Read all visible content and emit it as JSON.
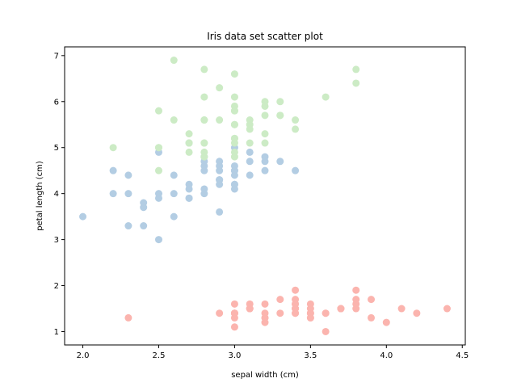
{
  "chart_data": {
    "type": "scatter",
    "title": "Iris data set scatter plot",
    "xlabel": "sepal width (cm)",
    "ylabel": "petal length (cm)",
    "xlim": [
      1.88,
      4.52
    ],
    "ylim": [
      0.71,
      7.19
    ],
    "xticks": [
      "2.0",
      "2.5",
      "3.0",
      "3.5",
      "4.0",
      "4.5"
    ],
    "yticks": [
      "1",
      "2",
      "3",
      "4",
      "5",
      "6",
      "7"
    ],
    "grid": false,
    "legend": "none",
    "series": [
      {
        "color": "#FBB4AE",
        "points": [
          [
            3.5,
            1.4
          ],
          [
            3.0,
            1.4
          ],
          [
            3.2,
            1.3
          ],
          [
            3.1,
            1.5
          ],
          [
            3.6,
            1.4
          ],
          [
            3.9,
            1.7
          ],
          [
            3.4,
            1.4
          ],
          [
            3.4,
            1.5
          ],
          [
            2.9,
            1.4
          ],
          [
            3.1,
            1.5
          ],
          [
            3.7,
            1.5
          ],
          [
            3.4,
            1.6
          ],
          [
            3.0,
            1.4
          ],
          [
            3.0,
            1.1
          ],
          [
            4.0,
            1.2
          ],
          [
            4.4,
            1.5
          ],
          [
            3.9,
            1.3
          ],
          [
            3.5,
            1.4
          ],
          [
            3.8,
            1.7
          ],
          [
            3.8,
            1.5
          ],
          [
            3.4,
            1.7
          ],
          [
            3.7,
            1.5
          ],
          [
            3.6,
            1.0
          ],
          [
            3.3,
            1.7
          ],
          [
            3.4,
            1.9
          ],
          [
            3.0,
            1.6
          ],
          [
            3.4,
            1.6
          ],
          [
            3.5,
            1.5
          ],
          [
            3.4,
            1.4
          ],
          [
            3.2,
            1.6
          ],
          [
            3.1,
            1.6
          ],
          [
            3.4,
            1.5
          ],
          [
            4.1,
            1.5
          ],
          [
            4.2,
            1.4
          ],
          [
            3.1,
            1.5
          ],
          [
            3.2,
            1.2
          ],
          [
            3.5,
            1.3
          ],
          [
            3.6,
            1.4
          ],
          [
            3.0,
            1.3
          ],
          [
            3.4,
            1.5
          ],
          [
            3.5,
            1.3
          ],
          [
            2.3,
            1.3
          ],
          [
            3.2,
            1.3
          ],
          [
            3.5,
            1.6
          ],
          [
            3.8,
            1.9
          ],
          [
            3.0,
            1.4
          ],
          [
            3.8,
            1.6
          ],
          [
            3.2,
            1.4
          ],
          [
            3.7,
            1.5
          ],
          [
            3.3,
            1.4
          ]
        ]
      },
      {
        "color": "#B3CDE3",
        "points": [
          [
            3.2,
            4.7
          ],
          [
            3.2,
            4.5
          ],
          [
            3.1,
            4.9
          ],
          [
            2.3,
            4.0
          ],
          [
            2.8,
            4.6
          ],
          [
            2.8,
            4.5
          ],
          [
            3.3,
            4.7
          ],
          [
            2.4,
            3.3
          ],
          [
            2.9,
            4.6
          ],
          [
            2.7,
            3.9
          ],
          [
            2.0,
            3.5
          ],
          [
            3.0,
            4.2
          ],
          [
            2.2,
            4.0
          ],
          [
            2.9,
            4.7
          ],
          [
            2.9,
            3.6
          ],
          [
            3.1,
            4.4
          ],
          [
            3.0,
            4.5
          ],
          [
            2.7,
            4.1
          ],
          [
            2.2,
            4.5
          ],
          [
            2.5,
            3.9
          ],
          [
            3.2,
            4.8
          ],
          [
            2.8,
            4.0
          ],
          [
            2.5,
            4.9
          ],
          [
            2.8,
            4.7
          ],
          [
            2.9,
            4.3
          ],
          [
            3.0,
            4.4
          ],
          [
            2.8,
            4.8
          ],
          [
            3.0,
            5.0
          ],
          [
            2.9,
            4.5
          ],
          [
            2.6,
            3.5
          ],
          [
            2.4,
            3.8
          ],
          [
            2.4,
            3.7
          ],
          [
            2.7,
            3.9
          ],
          [
            2.7,
            5.1
          ],
          [
            3.0,
            4.5
          ],
          [
            3.4,
            4.5
          ],
          [
            3.1,
            4.7
          ],
          [
            2.3,
            4.4
          ],
          [
            3.0,
            4.1
          ],
          [
            2.5,
            4.0
          ],
          [
            2.6,
            4.4
          ],
          [
            3.0,
            4.6
          ],
          [
            2.6,
            4.0
          ],
          [
            2.3,
            3.3
          ],
          [
            2.7,
            4.2
          ],
          [
            3.0,
            4.2
          ],
          [
            2.9,
            4.2
          ],
          [
            2.9,
            4.3
          ],
          [
            2.5,
            3.0
          ],
          [
            2.8,
            4.1
          ]
        ]
      },
      {
        "color": "#CCEBC5",
        "points": [
          [
            3.3,
            6.0
          ],
          [
            2.7,
            5.1
          ],
          [
            3.0,
            5.9
          ],
          [
            2.9,
            5.6
          ],
          [
            3.0,
            5.8
          ],
          [
            3.0,
            6.6
          ],
          [
            2.5,
            4.5
          ],
          [
            2.9,
            6.3
          ],
          [
            2.5,
            5.8
          ],
          [
            3.6,
            6.1
          ],
          [
            3.2,
            5.1
          ],
          [
            2.7,
            5.3
          ],
          [
            3.0,
            5.5
          ],
          [
            2.5,
            5.0
          ],
          [
            2.8,
            5.1
          ],
          [
            3.2,
            5.3
          ],
          [
            3.0,
            5.5
          ],
          [
            3.8,
            6.7
          ],
          [
            2.6,
            6.9
          ],
          [
            2.2,
            5.0
          ],
          [
            3.2,
            5.7
          ],
          [
            2.8,
            4.9
          ],
          [
            2.8,
            6.7
          ],
          [
            2.7,
            4.9
          ],
          [
            3.3,
            5.7
          ],
          [
            3.2,
            6.0
          ],
          [
            2.8,
            4.8
          ],
          [
            3.0,
            4.9
          ],
          [
            2.8,
            5.6
          ],
          [
            3.0,
            5.8
          ],
          [
            2.8,
            6.1
          ],
          [
            3.8,
            6.4
          ],
          [
            2.8,
            5.6
          ],
          [
            2.8,
            5.1
          ],
          [
            2.6,
            5.6
          ],
          [
            3.0,
            6.1
          ],
          [
            3.4,
            5.6
          ],
          [
            3.1,
            5.5
          ],
          [
            3.0,
            4.8
          ],
          [
            3.1,
            5.4
          ],
          [
            3.1,
            5.6
          ],
          [
            3.1,
            5.1
          ],
          [
            2.7,
            5.1
          ],
          [
            3.2,
            5.9
          ],
          [
            3.3,
            5.7
          ],
          [
            3.0,
            5.2
          ],
          [
            2.5,
            5.0
          ],
          [
            3.0,
            5.2
          ],
          [
            3.4,
            5.4
          ],
          [
            3.0,
            5.1
          ]
        ]
      }
    ]
  }
}
